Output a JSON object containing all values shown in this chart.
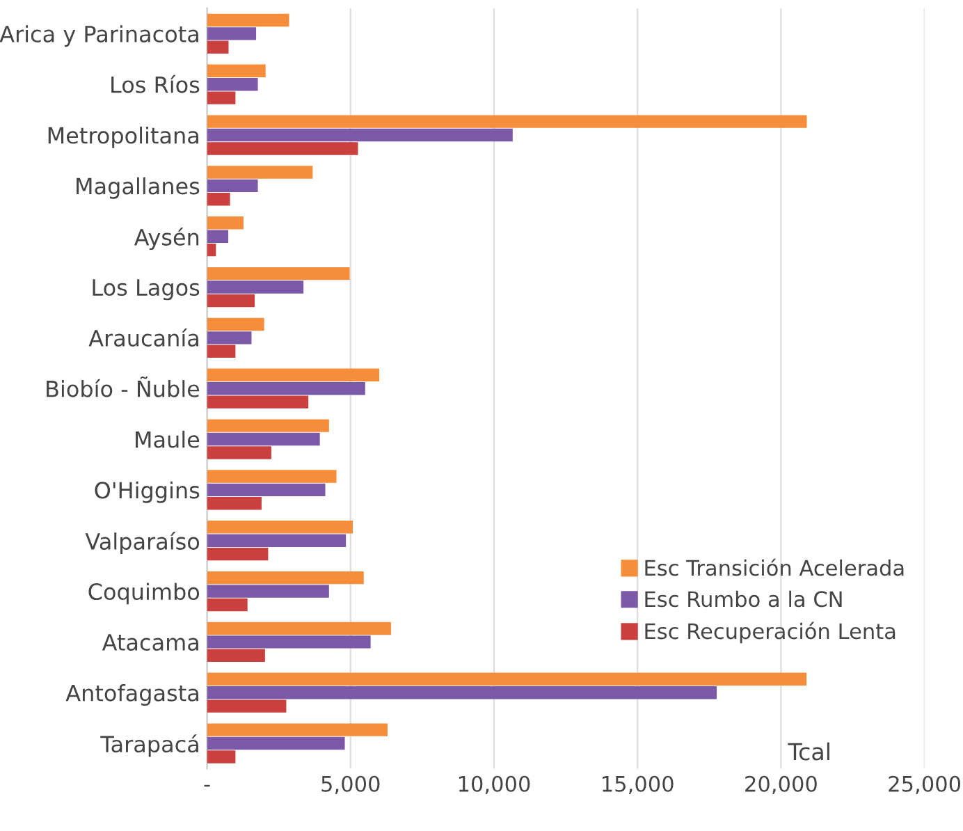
{
  "chart_data": {
    "type": "bar",
    "orientation": "horizontal",
    "xlabel": "Tcal",
    "categories": [
      "Arica y Parinacota",
      "Los Ríos",
      "Metropolitana",
      "Magallanes",
      "Aysén",
      "Los Lagos",
      "Araucanía",
      "Biobío - Ñuble",
      "Maule",
      "O'Higgins",
      "Valparaíso",
      "Coquimbo",
      "Atacama",
      "Antofagasta",
      "Tarapacá"
    ],
    "series": [
      {
        "name": "Esc Transición Acelerada",
        "color": "#f58d3a",
        "values": [
          2860,
          2040,
          20900,
          3680,
          1270,
          4970,
          1990,
          6000,
          4250,
          4510,
          5080,
          5460,
          6410,
          20890,
          6290
        ]
      },
      {
        "name": "Esc Rumbo a la CN",
        "color": "#7b59a6",
        "values": [
          1710,
          1770,
          10650,
          1770,
          740,
          3360,
          1550,
          5510,
          3930,
          4120,
          4840,
          4250,
          5700,
          17760,
          4800
        ]
      },
      {
        "name": "Esc Recuperación Lenta",
        "color": "#c9403f",
        "values": [
          750,
          990,
          5260,
          800,
          310,
          1660,
          990,
          3530,
          2240,
          1900,
          2130,
          1410,
          2020,
          2760,
          990
        ]
      }
    ],
    "xlim": [
      0,
      25000
    ],
    "xticks": [
      {
        "value": 0,
        "label": "-"
      },
      {
        "value": 5000,
        "label": "5,000"
      },
      {
        "value": 10000,
        "label": "10,000"
      },
      {
        "value": 15000,
        "label": "15,000"
      },
      {
        "value": 20000,
        "label": "20,000"
      },
      {
        "value": 25000,
        "label": "25,000"
      }
    ],
    "grid": "x",
    "legend": "center right"
  }
}
